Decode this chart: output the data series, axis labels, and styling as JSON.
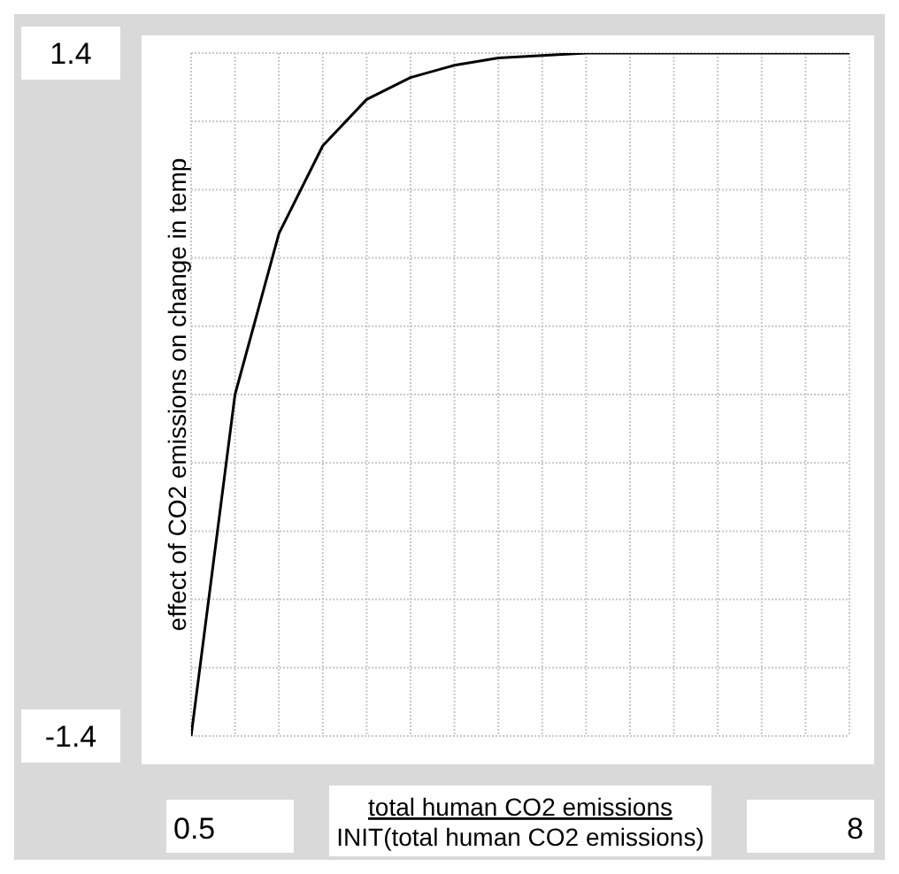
{
  "chart_data": {
    "type": "line",
    "xlabel": "total human CO2 emissions",
    "ylabel": "effect of CO2 emissions on change in temp",
    "annotations": [
      "INIT(total human CO2 emissions)"
    ],
    "x": [
      0.5,
      1,
      1.5,
      2,
      2.5,
      3,
      3.5,
      4,
      4.5,
      5,
      5.5,
      6,
      6.5,
      7,
      7.5,
      8
    ],
    "series": [
      {
        "color": "#000000",
        "values": [
          -1.4,
          0.0,
          0.66,
          1.02,
          1.21,
          1.3,
          1.35,
          1.38,
          1.39,
          1.4,
          1.4,
          1.4,
          1.4,
          1.4,
          1.4,
          1.4
        ]
      }
    ],
    "xlim": [
      0.5,
      8
    ],
    "xticks": [
      0.5,
      {
        "value": 1,
        "label": null
      },
      {
        "value": 1.5,
        "label": null
      },
      {
        "value": 2,
        "label": null
      },
      {
        "value": 2.5,
        "label": null
      },
      {
        "value": 3,
        "label": null
      },
      {
        "value": 3.5,
        "label": null
      },
      {
        "value": 4,
        "label": null
      },
      {
        "value": 4.5,
        "label": null
      },
      {
        "value": 5,
        "label": null
      },
      {
        "value": 5.5,
        "label": null
      },
      {
        "value": 6,
        "label": null
      },
      {
        "value": 6.5,
        "label": null
      },
      {
        "value": 7,
        "label": null
      },
      {
        "value": 7.5,
        "label": null
      },
      8
    ],
    "ylim": [
      -1.4,
      1.4
    ],
    "yticks": [
      -1.4,
      {
        "value": -1.12,
        "label": null
      },
      {
        "value": -0.84,
        "label": null
      },
      {
        "value": -0.56,
        "label": null
      },
      {
        "value": -0.28,
        "label": null
      },
      {
        "value": 0,
        "label": null
      },
      {
        "value": 0.28,
        "label": null
      },
      {
        "value": 0.56,
        "label": null
      },
      {
        "value": 0.84,
        "label": null
      },
      {
        "value": 1.12,
        "label": null
      },
      1.4
    ],
    "grid": true,
    "marker": "none",
    "line_style": "solid"
  }
}
